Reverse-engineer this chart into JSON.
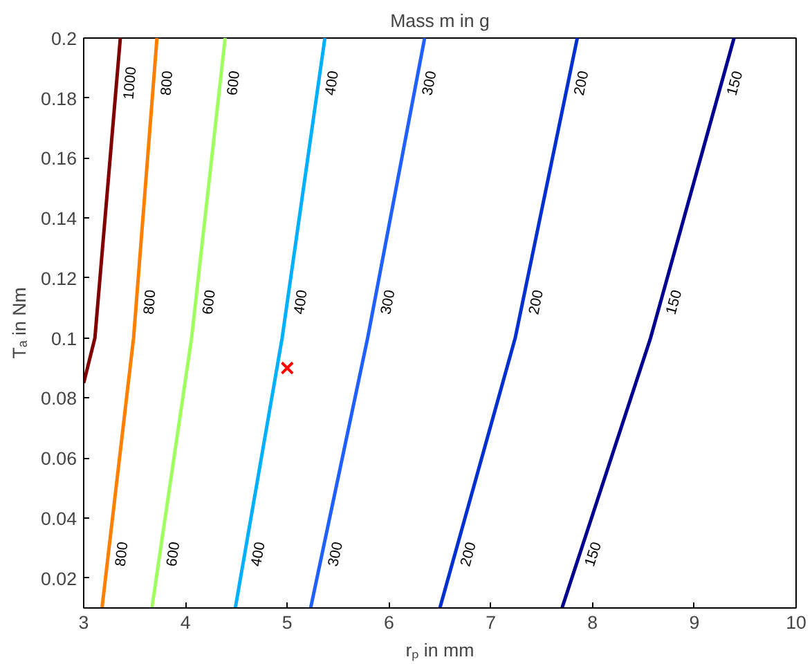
{
  "chart_data": {
    "type": "line",
    "title": "Mass m in g",
    "xlabel": "rₚ in mm",
    "ylabel": "Tₐ in Nm",
    "xlim": [
      3,
      10
    ],
    "ylim": [
      0.01,
      0.2
    ],
    "xticks": [
      3,
      4,
      5,
      6,
      7,
      8,
      9,
      10
    ],
    "yticks": [
      0.02,
      0.04,
      0.06,
      0.08,
      0.1,
      0.12,
      0.14,
      0.16,
      0.18,
      0.2
    ],
    "grid": false,
    "marker": "none",
    "line_style": "solid",
    "series": [
      {
        "name": "1000",
        "color": "#800000",
        "x": [
          3.0,
          3.11,
          3.36
        ],
        "values": [
          0.085,
          0.1,
          0.2
        ]
      },
      {
        "name": "800",
        "color": "#ff8000",
        "x": [
          3.18,
          3.49,
          3.72
        ],
        "values": [
          0.01,
          0.1,
          0.2
        ]
      },
      {
        "name": "600",
        "color": "#a0ff60",
        "x": [
          3.67,
          4.06,
          4.39
        ],
        "values": [
          0.01,
          0.1,
          0.2
        ]
      },
      {
        "name": "400",
        "color": "#00b0ff",
        "x": [
          4.49,
          4.95,
          5.37
        ],
        "values": [
          0.01,
          0.1,
          0.2
        ]
      },
      {
        "name": "300",
        "color": "#2060ff",
        "x": [
          5.23,
          5.79,
          6.35
        ],
        "values": [
          0.01,
          0.1,
          0.2
        ]
      },
      {
        "name": "200",
        "color": "#0030d0",
        "x": [
          6.5,
          7.24,
          7.85
        ],
        "values": [
          0.01,
          0.1,
          0.2
        ]
      },
      {
        "name": "150",
        "color": "#000090",
        "x": [
          7.7,
          8.57,
          9.39
        ],
        "values": [
          0.01,
          0.1,
          0.2
        ]
      },
      {
        "type": "scatter",
        "marker": "cross",
        "color": "#ff0000",
        "x": [
          5.0
        ],
        "values": [
          0.09
        ]
      }
    ]
  }
}
